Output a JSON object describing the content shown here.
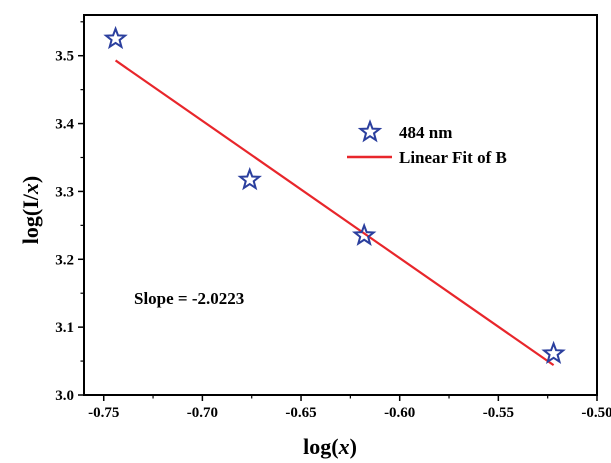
{
  "chart_data": {
    "type": "scatter",
    "xlabel_prefix": "log(",
    "xlabel_var": "x",
    "xlabel_suffix": ")",
    "ylabel_prefix": "log(I/",
    "ylabel_var": "x",
    "ylabel_suffix": ")",
    "xlim": [
      -0.76,
      -0.5
    ],
    "ylim": [
      3.0,
      3.56
    ],
    "xticks": [
      -0.75,
      -0.7,
      -0.65,
      -0.6,
      -0.55,
      -0.5
    ],
    "xtick_labels": [
      "-0.75",
      "-0.70",
      "-0.65",
      "-0.60",
      "-0.55",
      "-0.50"
    ],
    "yticks": [
      3.0,
      3.1,
      3.2,
      3.3,
      3.4,
      3.5
    ],
    "ytick_labels": [
      "3.0",
      "3.1",
      "3.2",
      "3.3",
      "3.4",
      "3.5"
    ],
    "series": [
      {
        "name": "484 nm",
        "kind": "scatter",
        "marker": "star",
        "color": "#2b3f9e",
        "x": [
          -0.744,
          -0.676,
          -0.618,
          -0.522
        ],
        "y": [
          3.525,
          3.317,
          3.235,
          3.061
        ]
      },
      {
        "name": "Linear Fit of B",
        "kind": "line",
        "color": "#e8262b",
        "x": [
          -0.744,
          -0.522
        ],
        "y": [
          3.493,
          3.044
        ]
      }
    ],
    "annotation": "Slope = -2.0223",
    "legend_position": "upper-right",
    "grid": false
  }
}
